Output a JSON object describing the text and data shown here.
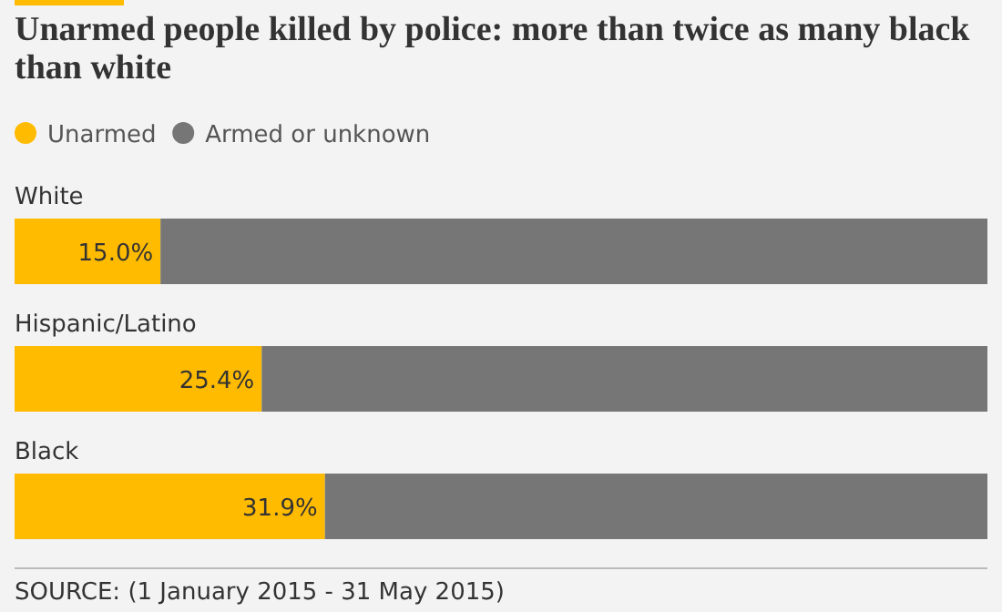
{
  "chart_data": {
    "type": "bar",
    "orientation": "horizontal",
    "stacked": true,
    "title": "Unarmed people killed by police: more than twice as many black than white",
    "categories": [
      "White",
      "Hispanic/Latino",
      "Black"
    ],
    "series": [
      {
        "name": "Unarmed",
        "color": "#ffbb00",
        "values": [
          15.0,
          25.4,
          31.9
        ],
        "value_labels": [
          "15.0%",
          "25.4%",
          "31.9%"
        ]
      },
      {
        "name": "Armed or unknown",
        "color": "#767676",
        "values": [
          85.0,
          74.6,
          68.1
        ]
      }
    ],
    "xlim": [
      0,
      100
    ],
    "legend": "top left",
    "annotations": [
      "SOURCE: (1 January 2015 - 31 May 2015)"
    ]
  }
}
